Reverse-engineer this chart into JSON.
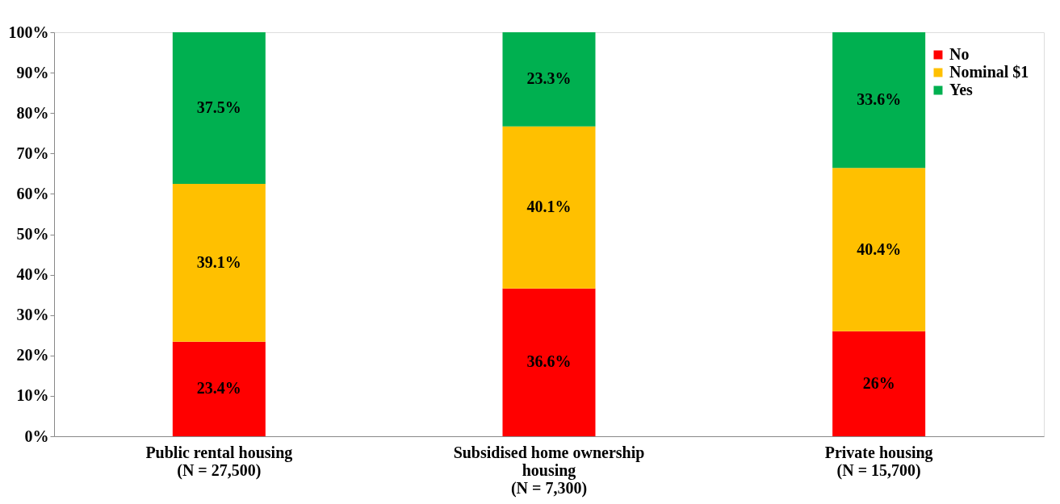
{
  "chart_data": {
    "type": "bar",
    "stacked": true,
    "categories": [
      "Public rental housing\n\n(N = 27,500)",
      "Subsidised home ownership\nhousing\n(N = 7,300)",
      "Private housing\n\n(N = 15,700)"
    ],
    "series": [
      {
        "name": "No",
        "color": "#ff0000",
        "values": [
          23.4,
          36.6,
          26
        ],
        "value_labels": [
          "23.4%",
          "36.6%",
          "26%"
        ]
      },
      {
        "name": "Nominal $1",
        "color": "#ffc000",
        "values": [
          39.1,
          40.1,
          40.4
        ],
        "value_labels": [
          "39.1%",
          "40.1%",
          "40.4%"
        ]
      },
      {
        "name": "Yes",
        "color": "#00b050",
        "values": [
          37.5,
          23.3,
          33.6
        ],
        "value_labels": [
          "37.5%",
          "23.3%",
          "33.6%"
        ]
      }
    ],
    "ylim": [
      0,
      100
    ],
    "yticks": [
      {
        "value": 0,
        "label": "0%"
      },
      {
        "value": 10,
        "label": "10%"
      },
      {
        "value": 20,
        "label": "20%"
      },
      {
        "value": 30,
        "label": "30%"
      },
      {
        "value": 40,
        "label": "40%"
      },
      {
        "value": 50,
        "label": "50%"
      },
      {
        "value": 60,
        "label": "60%"
      },
      {
        "value": 70,
        "label": "70%"
      },
      {
        "value": 80,
        "label": "80%"
      },
      {
        "value": 90,
        "label": "90%"
      },
      {
        "value": 100,
        "label": "100%"
      }
    ],
    "grid": false,
    "legend": "top right"
  }
}
